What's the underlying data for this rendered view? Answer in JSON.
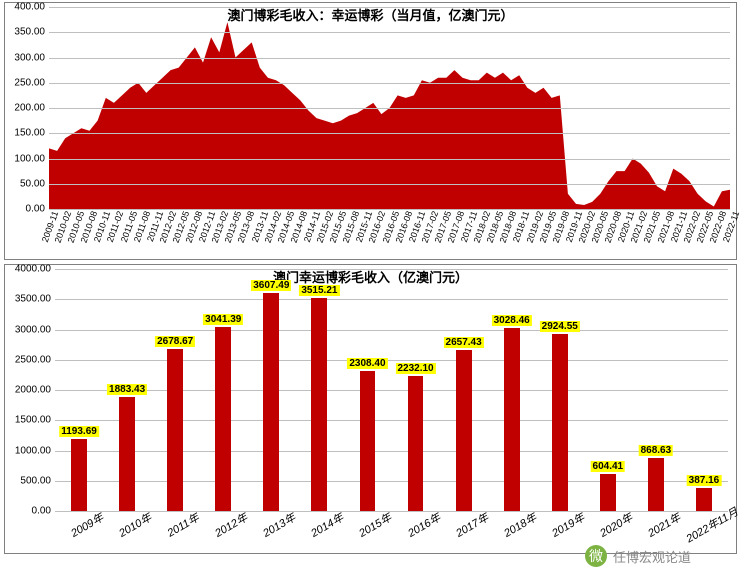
{
  "top_chart": {
    "type": "area",
    "title": "澳门博彩毛收入：幸运博彩（当月值，亿澳门元）",
    "title_fontsize": 13,
    "border_color": "#808080",
    "grid_color": "#bfbfbf",
    "fill_color": "#c00000",
    "background_color": "#ffffff",
    "ylim": [
      0,
      400
    ],
    "ytick_step": 50,
    "yticks": [
      "0.00",
      "50.00",
      "100.00",
      "150.00",
      "200.00",
      "250.00",
      "300.00",
      "350.00",
      "400.00"
    ],
    "xlabels": [
      "2009-11",
      "2010-02",
      "2010-05",
      "2010-08",
      "2010-11",
      "2011-02",
      "2011-05",
      "2011-08",
      "2011-11",
      "2012-02",
      "2012-05",
      "2012-08",
      "2012-11",
      "2013-02",
      "2013-05",
      "2013-08",
      "2013-11",
      "2014-02",
      "2014-05",
      "2014-08",
      "2014-11",
      "2015-02",
      "2015-05",
      "2015-08",
      "2015-11",
      "2016-02",
      "2016-05",
      "2016-08",
      "2016-11",
      "2017-02",
      "2017-05",
      "2017-08",
      "2017-11",
      "2018-02",
      "2018-05",
      "2018-08",
      "2018-11",
      "2019-02",
      "2019-05",
      "2019-08",
      "2019-11",
      "2020-02",
      "2020-05",
      "2020-08",
      "2020-11",
      "2021-02",
      "2021-05",
      "2021-08",
      "2021-11",
      "2022-02",
      "2022-05",
      "2022-08",
      "2022-11"
    ],
    "values": [
      120,
      115,
      140,
      150,
      160,
      155,
      175,
      220,
      210,
      225,
      240,
      250,
      230,
      245,
      260,
      275,
      280,
      300,
      320,
      290,
      340,
      310,
      370,
      300,
      315,
      330,
      280,
      260,
      255,
      245,
      230,
      215,
      195,
      180,
      175,
      170,
      175,
      185,
      190,
      200,
      210,
      188,
      200,
      225,
      220,
      225,
      255,
      250,
      260,
      260,
      275,
      260,
      255,
      255,
      270,
      260,
      270,
      255,
      265,
      240,
      230,
      240,
      220,
      225,
      30,
      10,
      8,
      14,
      30,
      55,
      75,
      75,
      100,
      90,
      72,
      45,
      35,
      80,
      70,
      55,
      30,
      15,
      5,
      35,
      38
    ]
  },
  "bottom_chart": {
    "type": "bar",
    "title": "澳门幸运博彩毛收入（亿澳门元）",
    "title_fontsize": 13,
    "border_color": "#808080",
    "grid_color": "#bfbfbf",
    "bar_color": "#c00000",
    "label_highlight": "#ffff00",
    "background_color": "#ffffff",
    "ylim": [
      0,
      4000
    ],
    "ytick_step": 500,
    "yticks": [
      "0.00",
      "500.00",
      "1000.00",
      "1500.00",
      "2000.00",
      "2500.00",
      "3000.00",
      "3500.00",
      "4000.00"
    ],
    "bar_width": 0.33,
    "categories": [
      "2009年",
      "2010年",
      "2011年",
      "2012年",
      "2013年",
      "2014年",
      "2015年",
      "2016年",
      "2017年",
      "2018年",
      "2019年",
      "2020年",
      "2021年",
      "2022年11月"
    ],
    "values": [
      1193.69,
      1883.43,
      2678.67,
      3041.39,
      3607.49,
      3515.21,
      2308.4,
      2232.1,
      2657.43,
      3028.46,
      2924.55,
      604.41,
      868.63,
      387.16
    ],
    "value_labels": [
      "1193.69",
      "1883.43",
      "2678.67",
      "3041.39",
      "3607.49",
      "3515.21",
      "2308.40",
      "2232.10",
      "2657.43",
      "3028.46",
      "2924.55",
      "604.41",
      "868.63",
      "387.16"
    ]
  },
  "watermark": {
    "text": "任博宏观论道",
    "icon_label": "微"
  }
}
